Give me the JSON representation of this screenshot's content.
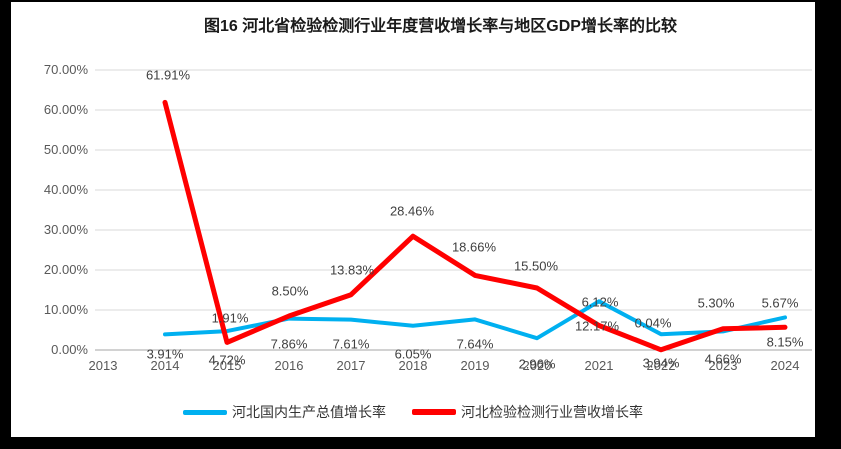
{
  "title": "图16 河北省检验检测行业年度营收增长率与地区GDP增长率的比较",
  "chart_data": {
    "type": "line",
    "categories": [
      "2013",
      "2014",
      "2015",
      "2016",
      "2017",
      "2018",
      "2019",
      "2020",
      "2021",
      "2022",
      "2023",
      "2024"
    ],
    "series": [
      {
        "name": "河北国内生产总值增长率",
        "color": "#00B0F0",
        "values": [
          null,
          3.91,
          4.72,
          7.86,
          7.61,
          6.05,
          7.64,
          2.96,
          12.17,
          3.94,
          4.66,
          8.15
        ]
      },
      {
        "name": "河北检验检测行业营收增长率",
        "color": "#FF0000",
        "values": [
          null,
          61.91,
          1.91,
          8.5,
          13.83,
          28.46,
          18.66,
          15.5,
          6.12,
          0.04,
          5.3,
          5.67
        ]
      }
    ],
    "value_label_format": "0.00%",
    "yticks": [
      "0.00%",
      "10.00%",
      "20.00%",
      "30.00%",
      "40.00%",
      "50.00%",
      "60.00%",
      "70.00%"
    ],
    "ylim": [
      0,
      70
    ],
    "ytick_step": 10,
    "grid": true,
    "legend_position": "bottom",
    "colors": {
      "grid": "#D9D9D9",
      "axis_line": "#A6A6A6",
      "tick_text": "#595959",
      "data_label_text": "#404040",
      "title_text": "#1a1a1a"
    }
  }
}
